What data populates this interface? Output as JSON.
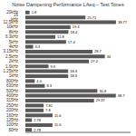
{
  "chart_data": {
    "type": "bar",
    "title": "Noise Dampening Performance LAeq – Test Tones",
    "orientation": "horizontal",
    "categories": [
      "20kHz",
      "16 kHz",
      "12.5kHz",
      "10kHz",
      "8kHz",
      "6.3kHz",
      "5kHz",
      "4kHz",
      "3.15kHz",
      "2.5kHz",
      "2kHz",
      "1.6kHz",
      "1.25kHz",
      "1kHz",
      "800Hz",
      "630Hz",
      "500Hz",
      "400Hz",
      "315Hz",
      "250Hz",
      "200Hz",
      "160Hz",
      "125Hz",
      "100Hz",
      "80Hz"
    ],
    "values": [
      1.8,
      25.71,
      38.77,
      19.3,
      18.4,
      12.8,
      17.4,
      3.3,
      28.7,
      34,
      27.2,
      9.9,
      18.3,
      18.3,
      4.0,
      8.3,
      30.8,
      38.7,
      29.37,
      7.81,
      7.8,
      11.6,
      2.78,
      11.6,
      2.78
    ],
    "value_labels": [
      "1.8",
      "25.71",
      "38.77",
      "19.3",
      "18.4",
      "12.8",
      "17.4",
      "3.3",
      "28.7",
      "34",
      "27.2",
      "9.9",
      "18.3",
      "18.3",
      "4.0",
      "8.3",
      "30.8",
      "38.7",
      "29.37",
      "7.81",
      "7.8",
      "11.6",
      "2.78",
      "11.6",
      "2.78"
    ],
    "color": "#595959",
    "xlim": [
      0,
      45
    ],
    "data_labels": true,
    "tick_labels": "y",
    "grid": false
  }
}
